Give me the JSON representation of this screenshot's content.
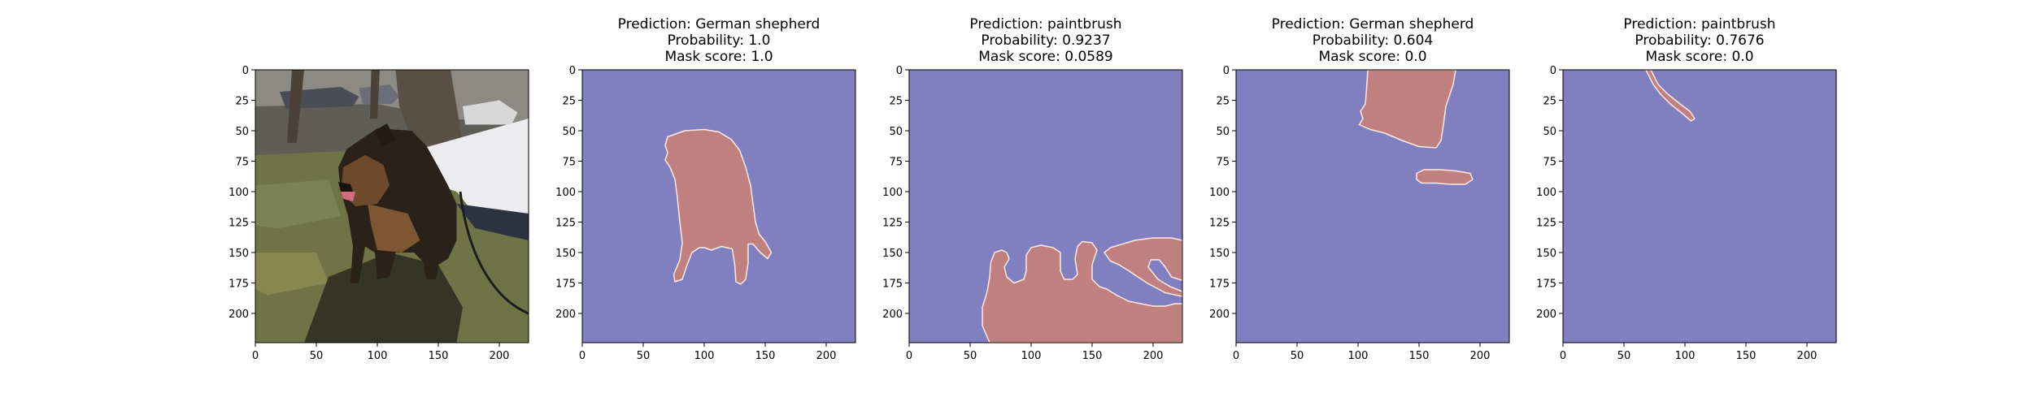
{
  "chart_data": [
    {
      "type": "image",
      "title_lines": [],
      "xticks": [
        0,
        50,
        100,
        150,
        200
      ],
      "yticks": [
        0,
        25,
        50,
        75,
        100,
        125,
        150,
        175,
        200
      ],
      "xlim": [
        0,
        224
      ],
      "ylim": [
        224,
        0
      ],
      "image": "photo-dog",
      "mask_regions": []
    },
    {
      "type": "heatmap",
      "title_lines": [
        "Prediction: German shepherd",
        "Probability: 1.0",
        "Mask score: 1.0"
      ],
      "xticks": [
        0,
        50,
        100,
        150,
        200
      ],
      "yticks": [
        0,
        25,
        50,
        75,
        100,
        125,
        150,
        175,
        200
      ],
      "xlim": [
        0,
        224
      ],
      "ylim": [
        224,
        0
      ],
      "mask_regions": [
        [
          [
            70,
            55
          ],
          [
            84,
            50
          ],
          [
            100,
            49
          ],
          [
            112,
            51
          ],
          [
            122,
            57
          ],
          [
            129,
            66
          ],
          [
            134,
            80
          ],
          [
            138,
            95
          ],
          [
            140,
            110
          ],
          [
            142,
            125
          ],
          [
            145,
            135
          ],
          [
            150,
            141
          ],
          [
            155,
            150
          ],
          [
            152,
            155
          ],
          [
            146,
            150
          ],
          [
            140,
            143
          ],
          [
            136,
            143
          ],
          [
            136,
            158
          ],
          [
            134,
            172
          ],
          [
            130,
            176
          ],
          [
            126,
            174
          ],
          [
            125,
            160
          ],
          [
            123,
            147
          ],
          [
            114,
            145
          ],
          [
            106,
            148
          ],
          [
            100,
            146
          ],
          [
            96,
            146
          ],
          [
            90,
            150
          ],
          [
            86,
            160
          ],
          [
            82,
            172
          ],
          [
            76,
            174
          ],
          [
            75,
            168
          ],
          [
            80,
            156
          ],
          [
            82,
            142
          ],
          [
            80,
            125
          ],
          [
            78,
            105
          ],
          [
            76,
            90
          ],
          [
            72,
            80
          ],
          [
            68,
            74
          ],
          [
            70,
            68
          ],
          [
            68,
            62
          ]
        ]
      ]
    },
    {
      "type": "heatmap",
      "title_lines": [
        "Prediction: paintbrush",
        "Probability: 0.9237",
        "Mask score: 0.0589"
      ],
      "xticks": [
        0,
        50,
        100,
        150,
        200
      ],
      "yticks": [
        0,
        25,
        50,
        75,
        100,
        125,
        150,
        175,
        200
      ],
      "xlim": [
        0,
        224
      ],
      "ylim": [
        224,
        0
      ],
      "mask_regions": [
        [
          [
            66,
            224
          ],
          [
            60,
            210
          ],
          [
            60,
            195
          ],
          [
            64,
            182
          ],
          [
            66,
            170
          ],
          [
            67,
            158
          ],
          [
            70,
            150
          ],
          [
            76,
            148
          ],
          [
            80,
            150
          ],
          [
            82,
            155
          ],
          [
            78,
            162
          ],
          [
            80,
            170
          ],
          [
            86,
            175
          ],
          [
            94,
            172
          ],
          [
            96,
            165
          ],
          [
            96,
            152
          ],
          [
            100,
            146
          ],
          [
            108,
            144
          ],
          [
            118,
            146
          ],
          [
            124,
            150
          ],
          [
            124,
            165
          ],
          [
            127,
            172
          ],
          [
            134,
            172
          ],
          [
            138,
            168
          ],
          [
            136,
            155
          ],
          [
            138,
            145
          ],
          [
            142,
            141
          ],
          [
            150,
            142
          ],
          [
            154,
            148
          ],
          [
            150,
            160
          ],
          [
            150,
            172
          ],
          [
            156,
            178
          ],
          [
            162,
            180
          ],
          [
            170,
            185
          ],
          [
            180,
            190
          ],
          [
            190,
            192
          ],
          [
            200,
            194
          ],
          [
            210,
            194
          ],
          [
            218,
            192
          ],
          [
            224,
            192
          ],
          [
            224,
            224
          ]
        ],
        [
          [
            160,
            150
          ],
          [
            165,
            146
          ],
          [
            175,
            143
          ],
          [
            185,
            140
          ],
          [
            200,
            138
          ],
          [
            215,
            138
          ],
          [
            224,
            140
          ],
          [
            224,
            173
          ],
          [
            215,
            170
          ],
          [
            210,
            162
          ],
          [
            205,
            156
          ],
          [
            198,
            156
          ],
          [
            196,
            162
          ],
          [
            204,
            172
          ],
          [
            214,
            178
          ],
          [
            224,
            182
          ],
          [
            224,
            186
          ],
          [
            210,
            183
          ],
          [
            195,
            175
          ],
          [
            180,
            165
          ],
          [
            172,
            160
          ],
          [
            165,
            157
          ]
        ]
      ]
    },
    {
      "type": "heatmap",
      "title_lines": [
        "Prediction: German shepherd",
        "Probability: 0.604",
        "Mask score: 0.0"
      ],
      "xticks": [
        0,
        50,
        100,
        150,
        200
      ],
      "yticks": [
        0,
        25,
        50,
        75,
        100,
        125,
        150,
        175,
        200
      ],
      "xlim": [
        0,
        224
      ],
      "ylim": [
        224,
        0
      ],
      "mask_regions": [
        [
          [
            108,
            0
          ],
          [
            180,
            0
          ],
          [
            178,
            12
          ],
          [
            172,
            30
          ],
          [
            170,
            45
          ],
          [
            168,
            58
          ],
          [
            164,
            64
          ],
          [
            150,
            63
          ],
          [
            136,
            58
          ],
          [
            122,
            52
          ],
          [
            110,
            49
          ],
          [
            101,
            45
          ],
          [
            104,
            40
          ],
          [
            102,
            34
          ],
          [
            106,
            28
          ],
          [
            107,
            15
          ]
        ],
        [
          [
            148,
            85
          ],
          [
            154,
            82
          ],
          [
            168,
            82
          ],
          [
            180,
            83
          ],
          [
            192,
            85
          ],
          [
            194,
            90
          ],
          [
            188,
            94
          ],
          [
            176,
            94
          ],
          [
            164,
            93
          ],
          [
            152,
            93
          ],
          [
            148,
            90
          ]
        ]
      ]
    },
    {
      "type": "heatmap",
      "title_lines": [
        "Prediction: paintbrush",
        "Probability: 0.7676",
        "Mask score: 0.0"
      ],
      "xticks": [
        0,
        50,
        100,
        150,
        200
      ],
      "yticks": [
        0,
        25,
        50,
        75,
        100,
        125,
        150,
        175,
        200
      ],
      "xlim": [
        0,
        224
      ],
      "ylim": [
        224,
        0
      ],
      "mask_regions": [
        [
          [
            68,
            0
          ],
          [
            72,
            0
          ],
          [
            78,
            12
          ],
          [
            86,
            20
          ],
          [
            96,
            28
          ],
          [
            104,
            34
          ],
          [
            108,
            40
          ],
          [
            105,
            42
          ],
          [
            98,
            36
          ],
          [
            88,
            28
          ],
          [
            80,
            20
          ],
          [
            74,
            12
          ]
        ]
      ]
    }
  ],
  "colors": {
    "background": "#8080c0",
    "mask": "#c08080",
    "mask_edge": "#ffe9e2",
    "frame": "#000000"
  }
}
